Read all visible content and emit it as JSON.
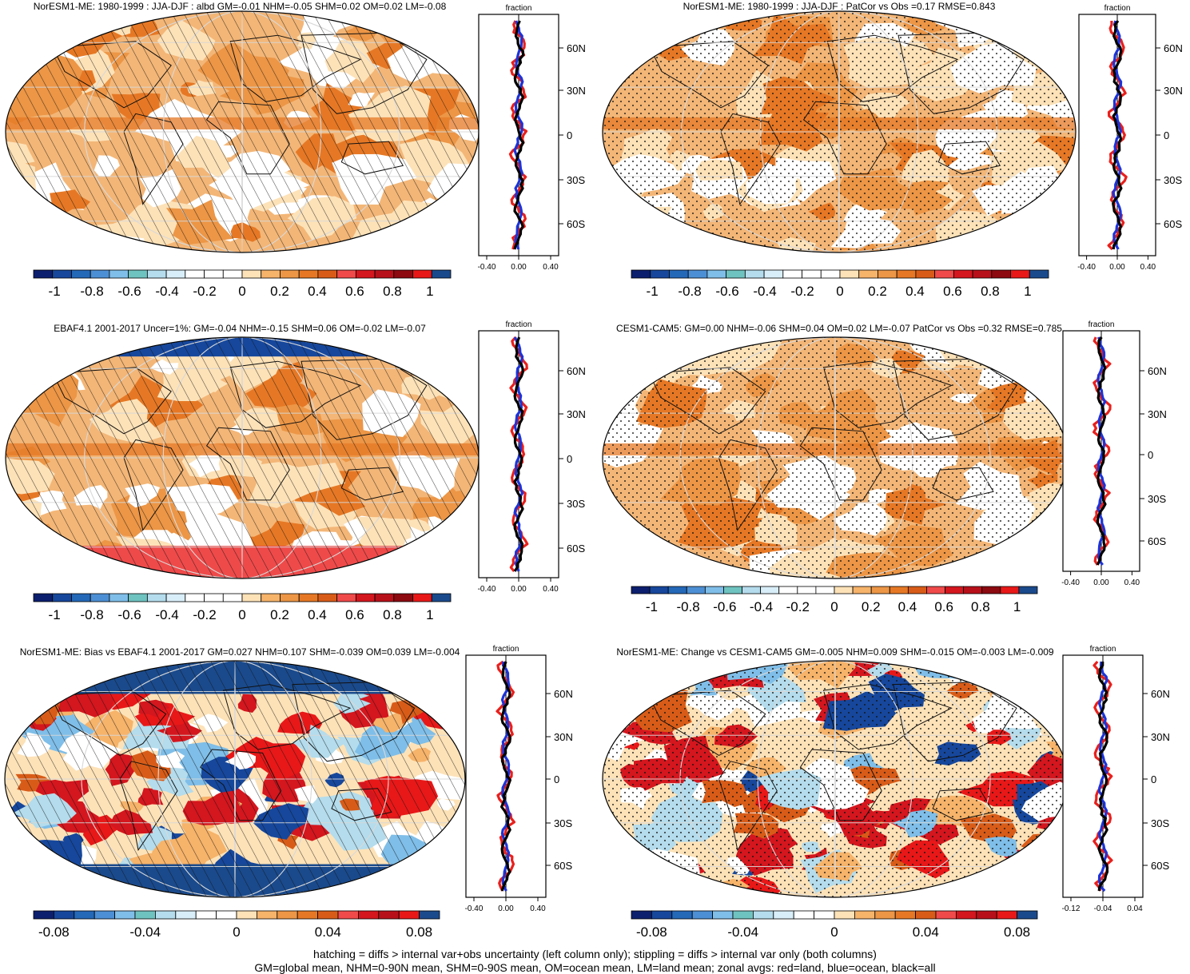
{
  "footer": {
    "line1": "hatching = diffs > internal var+obs uncertainty (left column only); stippling = diffs > internal var only (both columns)",
    "line2": "GM=global mean, NHM=0-90N mean, SHM=0-90S mean, OM=ocean mean, LM=land mean; zonal avgs: red=land, blue=ocean, black=all"
  },
  "colors": {
    "land": "#e8201c",
    "ocean": "#1c33d9",
    "all": "#000000",
    "palette": [
      "#0c1f6e",
      "#16479c",
      "#2468b8",
      "#4d8fd4",
      "#7fbee8",
      "#6ec3c0",
      "#b4dcec",
      "#d8eef8",
      "#ffffff",
      "#ffffff",
      "#fde2b8",
      "#f6b36a",
      "#ec9646",
      "#e67825",
      "#d85c18",
      "#f04a4a",
      "#d4161e",
      "#b8101a",
      "#8c0a10",
      "#e81818",
      "#d40c0c",
      "#c00a0a",
      "#1a4a8c"
    ]
  },
  "panels": [
    {
      "title": "NorESM1-ME: 1980-1999 : JJA-DJF : albd GM=-0.01 NHM=-0.05 SHM=0.02 OM=0.02 LM=-0.08",
      "zonal_header": "fraction",
      "lat_labels": [
        "60N",
        "30N",
        "0",
        "30S",
        "60S"
      ],
      "zonal_x_ticks": [
        "-0.40",
        "0.00",
        "0.40"
      ],
      "colorbar_labels": [
        "-1",
        "-0.8",
        "-0.6",
        "-0.4",
        "-0.2",
        "0",
        "0.2",
        "0.4",
        "0.6",
        "0.8",
        "1"
      ],
      "pattern": "hatch",
      "style": "orange"
    },
    {
      "title": "NorESM1-ME: 1980-1999 : JJA-DJF : PatCor vs Obs =0.17 RMSE=0.843",
      "zonal_header": "fraction",
      "lat_labels": [
        "60N",
        "30N",
        "0",
        "30S",
        "60S"
      ],
      "zonal_x_ticks": [
        "-0.40",
        "0.00",
        "0.40"
      ],
      "colorbar_labels": [
        "-1",
        "-0.8",
        "-0.6",
        "-0.4",
        "-0.2",
        "0",
        "0.2",
        "0.4",
        "0.6",
        "0.8",
        "1"
      ],
      "pattern": "stipple",
      "style": "orange"
    },
    {
      "title": "EBAF4.1 2001-2017 Uncer=1%: GM=-0.04 NHM=-0.15 SHM=0.06 OM=-0.02 LM=-0.07",
      "zonal_header": "fraction",
      "lat_labels": [
        "60N",
        "30N",
        "0",
        "30S",
        "60S"
      ],
      "zonal_x_ticks": [
        "-0.40",
        "0.00",
        "0.40"
      ],
      "colorbar_labels": [
        "-1",
        "-0.8",
        "-0.6",
        "-0.4",
        "-0.2",
        "0",
        "0.2",
        "0.4",
        "0.6",
        "0.8",
        "1"
      ],
      "pattern": "hatch",
      "style": "ebaf"
    },
    {
      "title": "CESM1-CAM5: GM=0.00 NHM=-0.06 SHM=0.04 OM=0.02 LM=-0.07 PatCor vs Obs =0.32 RMSE=0.785",
      "zonal_header": "fraction",
      "lat_labels": [
        "60N",
        "30N",
        "0",
        "30S",
        "60S"
      ],
      "zonal_x_ticks": [
        "-0.40",
        "0.00",
        "0.40"
      ],
      "colorbar_labels": [
        "-1",
        "-0.8",
        "-0.6",
        "-0.4",
        "-0.2",
        "0",
        "0.2",
        "0.4",
        "0.6",
        "0.8",
        "1"
      ],
      "pattern": "stipple",
      "style": "orange"
    },
    {
      "title": "NorESM1-ME: Bias vs EBAF4.1 2001-2017 GM=0.027 NHM=0.107 SHM=-0.039 OM=0.039 LM=-0.004",
      "zonal_header": "fraction",
      "lat_labels": [
        "60N",
        "30N",
        "0",
        "30S",
        "60S"
      ],
      "zonal_x_ticks": [
        "-0.40",
        "0.00",
        "0.40"
      ],
      "colorbar_labels": [
        "-0.08",
        "-0.04",
        "0",
        "0.04",
        "0.08"
      ],
      "pattern": "hatch",
      "style": "bias"
    },
    {
      "title": "NorESM1-ME: Change vs CESM1-CAM5 GM=-0.005 NHM=0.009 SHM=-0.015 OM=-0.003 LM=-0.009",
      "zonal_header": "fraction",
      "lat_labels": [
        "60N",
        "30N",
        "0",
        "30S",
        "60S"
      ],
      "zonal_x_ticks": [
        "-0.12",
        "-0.04",
        "0.04"
      ],
      "colorbar_labels": [
        "-0.08",
        "-0.04",
        "0",
        "0.04",
        "0.08"
      ],
      "pattern": "stipple",
      "style": "change"
    }
  ]
}
